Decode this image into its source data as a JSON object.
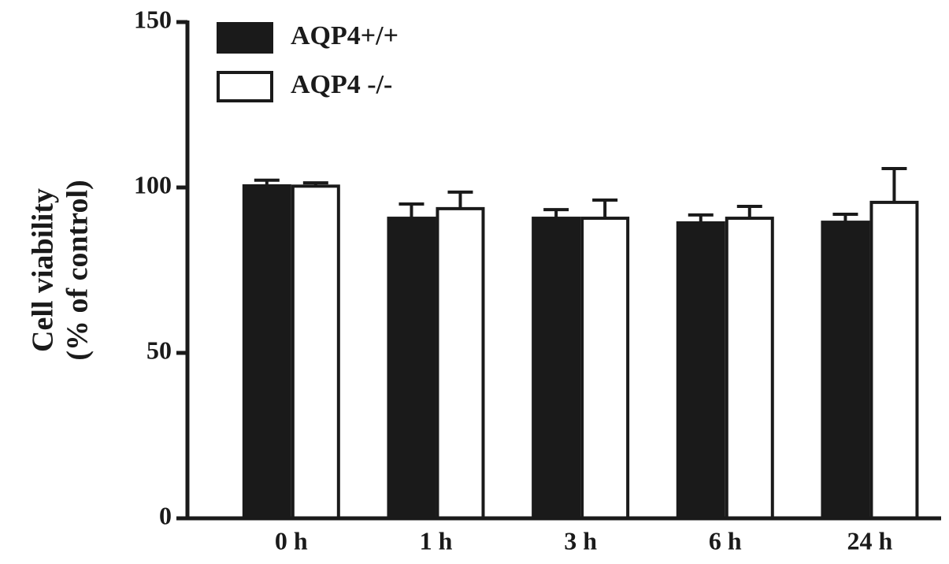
{
  "chart_data": {
    "type": "bar",
    "ylabel": [
      "Cell viability",
      "(% of control)"
    ],
    "categories": [
      "0 h",
      "1 h",
      "3 h",
      "6 h",
      "24 h"
    ],
    "series": [
      {
        "name": "AQP4+/+",
        "color": "#1a1a1a",
        "values": [
          100.5,
          90.7,
          90.7,
          89.3,
          89.5
        ],
        "errors": [
          1.7,
          4.3,
          2.6,
          2.4,
          2.4
        ]
      },
      {
        "name": "AQP4 -/-",
        "color": "#ffffff",
        "values": [
          100.4,
          93.6,
          90.7,
          90.7,
          95.5
        ],
        "errors": [
          1.0,
          5.0,
          5.5,
          3.6,
          10.2
        ]
      }
    ],
    "ylim": [
      0,
      150
    ],
    "yticks": [
      0,
      50,
      100,
      150
    ],
    "grid": false,
    "legend": "top-left"
  }
}
